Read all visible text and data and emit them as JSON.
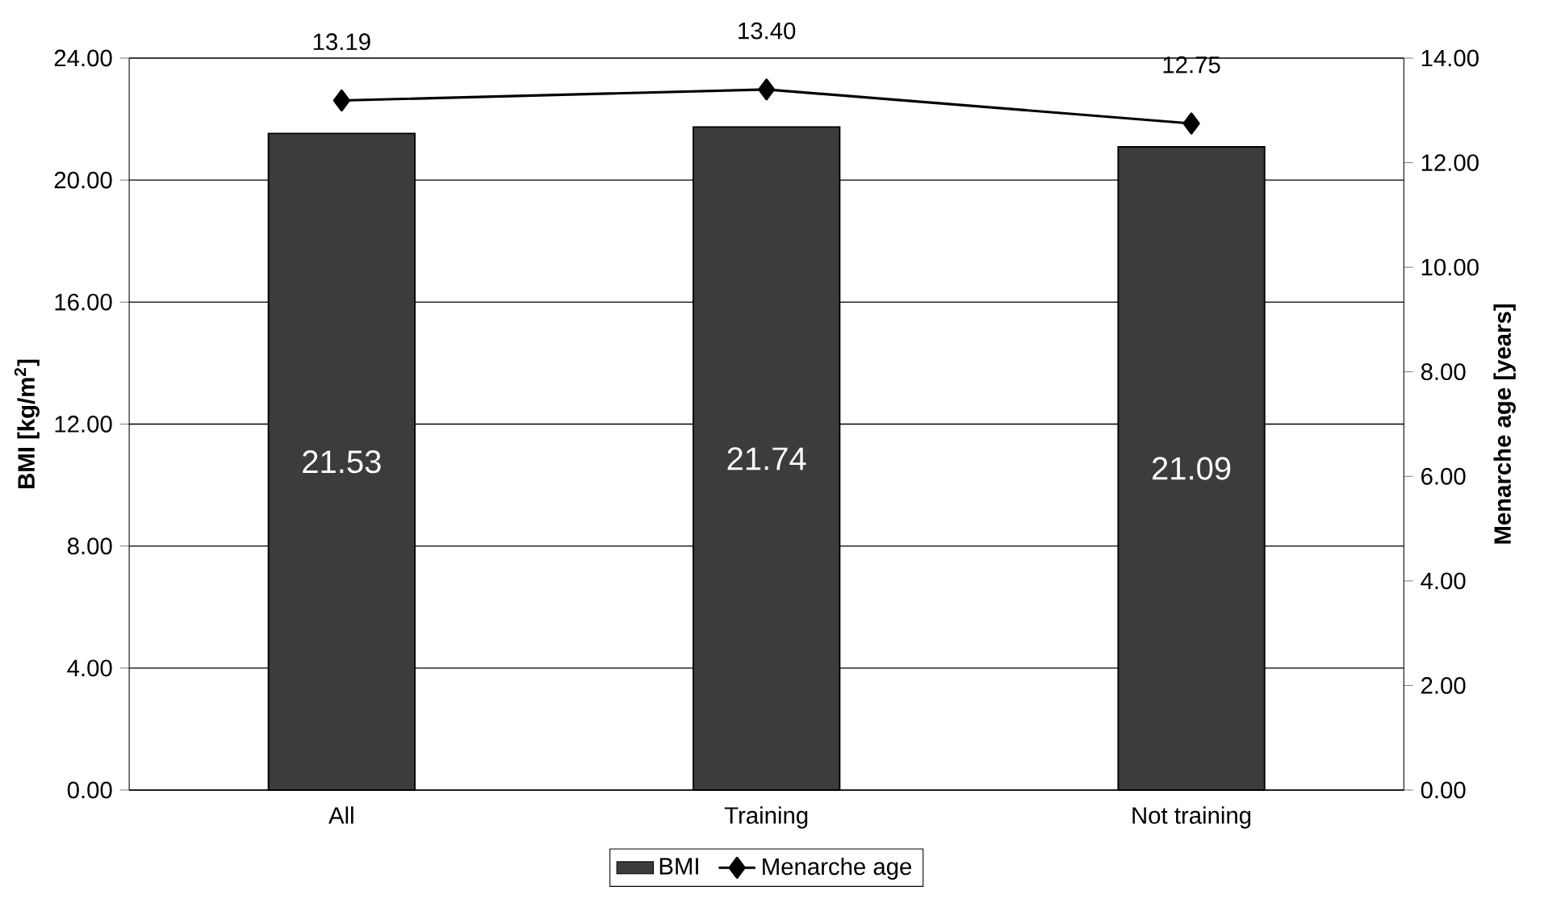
{
  "chart_data": {
    "type": "bar",
    "categories": [
      "All",
      "Training",
      "Not training"
    ],
    "series": [
      {
        "name": "BMI",
        "color": "#3c3c3c",
        "values": [
          21.53,
          21.74,
          21.09
        ],
        "value_labels": [
          "21.53",
          "21.74",
          "21.09"
        ]
      },
      {
        "name": "Menarche age",
        "type": "line",
        "axis": "y2",
        "color": "#000000",
        "marker": "diamond",
        "values": [
          13.19,
          13.4,
          12.75
        ],
        "value_labels": [
          "13.19",
          "13.40",
          "12.75"
        ]
      }
    ],
    "ylabel": "BMI [kg/m$^{2}$]",
    "y2label": "Menarche age [years]",
    "ylim": [
      0,
      24
    ],
    "yticks": [
      {
        "value": 0,
        "label": "0.00"
      },
      {
        "value": 4,
        "label": "4.00"
      },
      {
        "value": 8,
        "label": "8.00"
      },
      {
        "value": 12,
        "label": "12.00"
      },
      {
        "value": 16,
        "label": "16.00"
      },
      {
        "value": 20,
        "label": "20.00"
      },
      {
        "value": 24,
        "label": "24.00"
      }
    ],
    "y2lim": [
      0,
      14
    ],
    "y2ticks": [
      {
        "value": 0,
        "label": "0.00"
      },
      {
        "value": 2,
        "label": "2.00"
      },
      {
        "value": 4,
        "label": "4.00"
      },
      {
        "value": 6,
        "label": "6.00"
      },
      {
        "value": 8,
        "label": "8.00"
      },
      {
        "value": 10,
        "label": "10.00"
      },
      {
        "value": 12,
        "label": "12.00"
      },
      {
        "value": 14,
        "label": "14.00"
      }
    ],
    "grid": "y",
    "legend": "bottom"
  }
}
